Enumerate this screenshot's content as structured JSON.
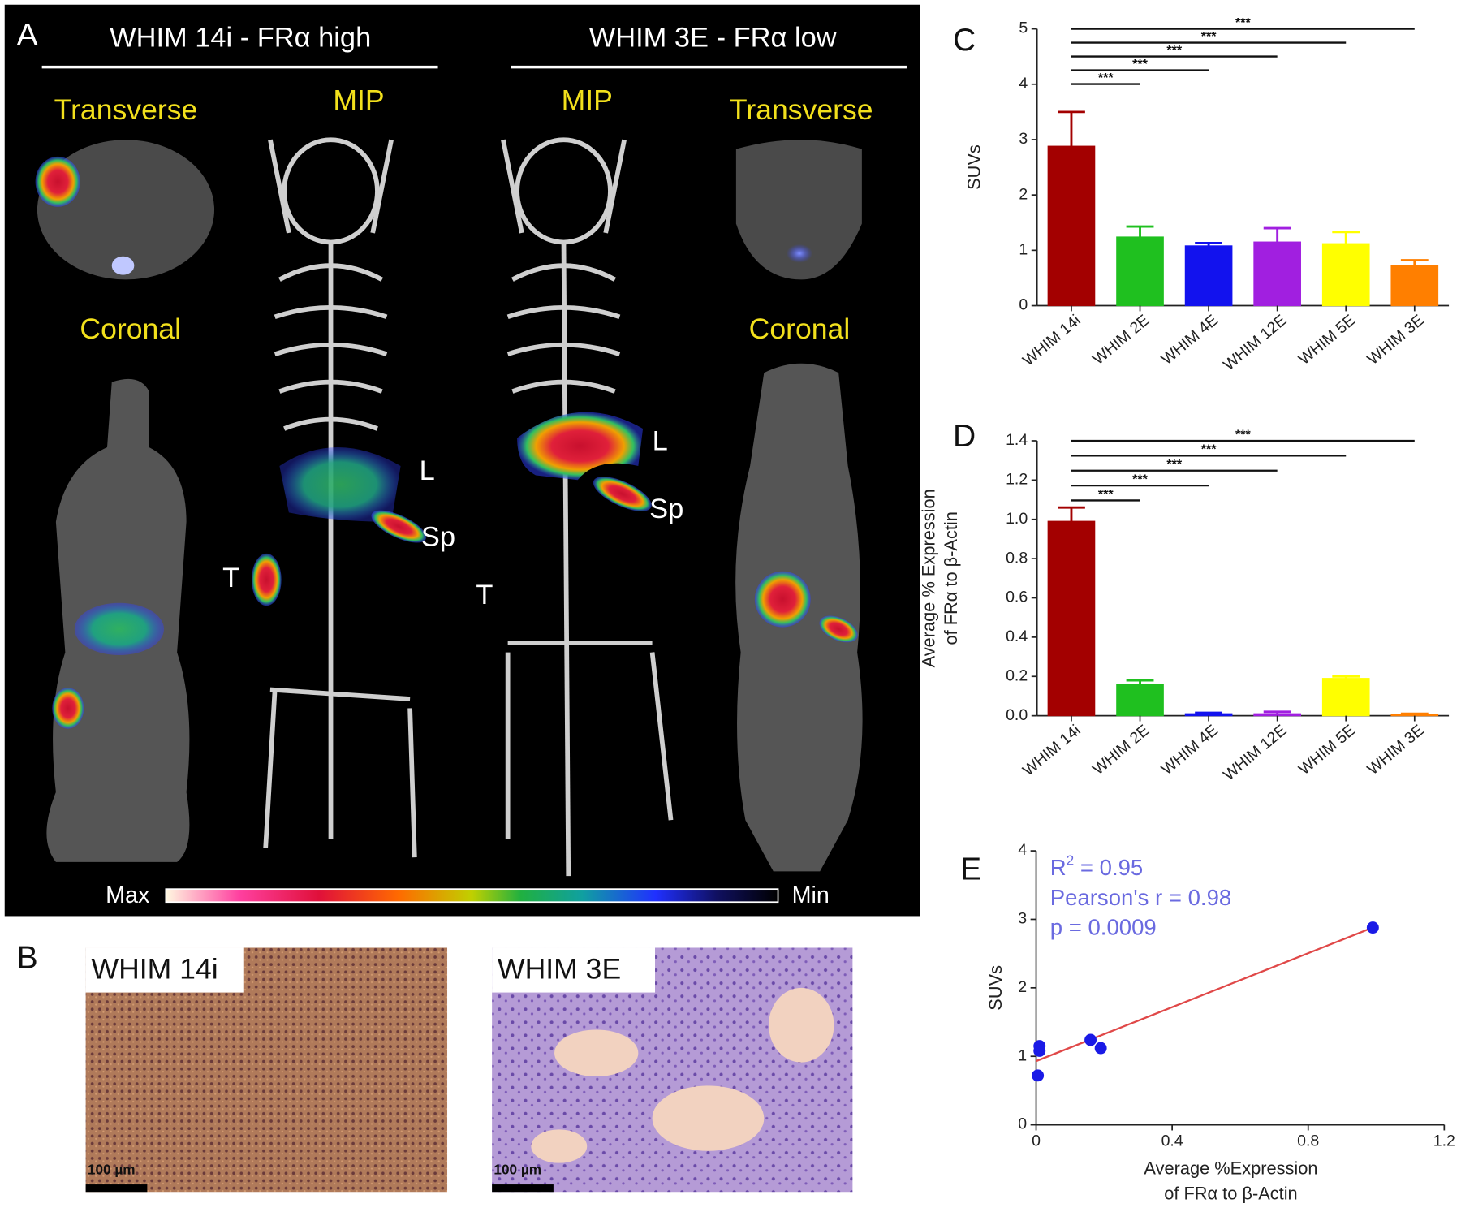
{
  "panel_a": {
    "label": "A",
    "left_title": "WHIM 14i - FRα high",
    "right_title": "WHIM 3E - FRα low",
    "left_transverse": "Transverse",
    "left_coronal": "Coronal",
    "left_mip": "MIP",
    "right_mip": "MIP",
    "right_transverse": "Transverse",
    "right_coronal": "Coronal",
    "left_liver": "L",
    "left_spleen": "Sp",
    "left_tumor": "T",
    "right_liver": "L",
    "right_spleen": "Sp",
    "right_tumor": "T",
    "colorbar_max": "Max",
    "colorbar_min": "Min"
  },
  "panel_b": {
    "label": "B",
    "left_title": "WHIM 14i",
    "right_title": "WHIM 3E",
    "left_scale": "100 µm",
    "right_scale": "100 µm"
  },
  "chart_data": [
    {
      "type": "bar",
      "panel_label": "C",
      "ylabel": [
        "SUVs"
      ],
      "categories": [
        "WHIM 14i",
        "WHIM 2E",
        "WHIM 4E",
        "WHIM 12E",
        "WHIM 5E",
        "WHIM 3E"
      ],
      "values": [
        2.88,
        1.24,
        1.08,
        1.15,
        1.12,
        0.72
      ],
      "errors": [
        0.62,
        0.19,
        0.05,
        0.25,
        0.21,
        0.1
      ],
      "colors": [
        "#a30000",
        "#1fc01f",
        "#1212ee",
        "#a11fe0",
        "#ffff00",
        "#ff7f00"
      ],
      "ylim": [
        0,
        5
      ],
      "yticks": [
        0,
        1,
        2,
        3,
        4,
        5
      ],
      "comparisons": [
        {
          "from": "WHIM 14i",
          "to": "WHIM 2E",
          "label": "***"
        },
        {
          "from": "WHIM 14i",
          "to": "WHIM 4E",
          "label": "***"
        },
        {
          "from": "WHIM 14i",
          "to": "WHIM 12E",
          "label": "***"
        },
        {
          "from": "WHIM 14i",
          "to": "WHIM 5E",
          "label": "***"
        },
        {
          "from": "WHIM 14i",
          "to": "WHIM 3E",
          "label": "***"
        }
      ]
    },
    {
      "type": "bar",
      "panel_label": "D",
      "ylabel": [
        "Average % Expression",
        "of FRα to β-Actin"
      ],
      "categories": [
        "WHIM 14i",
        "WHIM 2E",
        "WHIM 4E",
        "WHIM 12E",
        "WHIM 5E",
        "WHIM 3E"
      ],
      "values": [
        0.99,
        0.16,
        0.01,
        0.01,
        0.19,
        0.005
      ],
      "errors": [
        0.07,
        0.02,
        0.005,
        0.01,
        0.01,
        0.005
      ],
      "colors": [
        "#a30000",
        "#1fc01f",
        "#1212ee",
        "#a11fe0",
        "#ffff00",
        "#ff7f00"
      ],
      "ylim": [
        0,
        1.4
      ],
      "yticks": [
        {
          "value": 0,
          "label": "0.0"
        },
        0.2,
        0.4,
        0.6,
        0.8,
        {
          "value": 1,
          "label": "1.0"
        },
        1.2,
        1.4
      ],
      "comparisons": [
        {
          "from": "WHIM 14i",
          "to": "WHIM 2E",
          "label": "***"
        },
        {
          "from": "WHIM 14i",
          "to": "WHIM 4E",
          "label": "***"
        },
        {
          "from": "WHIM 14i",
          "to": "WHIM 12E",
          "label": "***"
        },
        {
          "from": "WHIM 14i",
          "to": "WHIM 5E",
          "label": "***"
        },
        {
          "from": "WHIM 14i",
          "to": "WHIM 3E",
          "label": "***"
        }
      ]
    },
    {
      "type": "scatter",
      "panel_label": "E",
      "ylabel": [
        "SUVs"
      ],
      "xlabel": [
        "Average %Expression",
        "of FRα to β-Actin"
      ],
      "x": [
        0.99,
        0.16,
        0.01,
        0.01,
        0.19,
        0.005
      ],
      "y": [
        2.88,
        1.24,
        1.08,
        1.15,
        1.12,
        0.72
      ],
      "color": "#1a1ae6",
      "fit": {
        "x": [
          0,
          0.99
        ],
        "y": [
          0.93,
          2.88
        ],
        "color": "#e04848"
      },
      "xlim": [
        0,
        1.2
      ],
      "xticks": [
        0,
        0.4,
        0.8,
        1.2
      ],
      "ylim": [
        0,
        4
      ],
      "yticks": [
        0,
        1,
        2,
        3,
        4
      ],
      "annotations": [
        [
          "R",
          "2",
          " = 0.95"
        ],
        [
          "Pearson's r = 0.98"
        ],
        [
          "p = 0.0009"
        ]
      ],
      "annotation_color": "#6a6ae0"
    }
  ]
}
